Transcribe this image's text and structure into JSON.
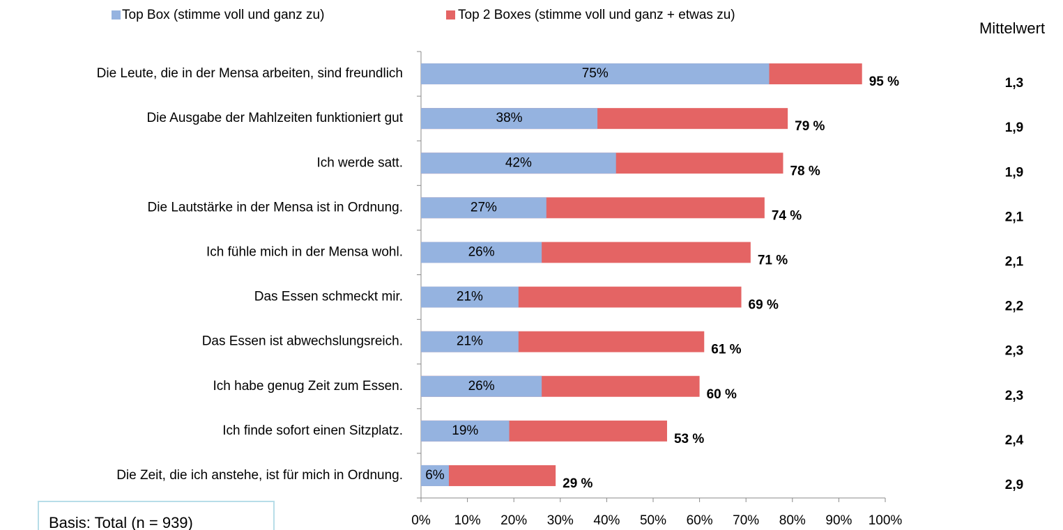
{
  "chart_data": {
    "type": "bar",
    "orientation": "horizontal",
    "overlap": true,
    "categories": [
      "Die Leute, die in der Mensa arbeiten, sind freundlich",
      "Die Ausgabe der Mahlzeiten funktioniert gut",
      "Ich werde satt.",
      "Die Lautstärke in der Mensa ist in Ordnung.",
      "Ich fühle mich in der Mensa wohl.",
      "Das Essen schmeckt mir.",
      "Das Essen ist abwechslungsreich.",
      "Ich habe genug Zeit zum Essen.",
      "Ich finde sofort einen Sitzplatz.",
      "Die Zeit, die ich anstehe, ist für mich in Ordnung."
    ],
    "series": [
      {
        "name": "Top 2 Boxes (stimme voll und ganz + etwas zu)",
        "color": "#e46464",
        "values": [
          95,
          79,
          78,
          74,
          71,
          69,
          61,
          60,
          53,
          29
        ],
        "value_labels": [
          "95 %",
          "79 %",
          "78 %",
          "74 %",
          "71 %",
          "69 %",
          "61 %",
          "60 %",
          "53 %",
          "29 %"
        ]
      },
      {
        "name": "Top Box (stimme voll und ganz zu)",
        "color": "#95b3e0",
        "values": [
          75,
          38,
          42,
          27,
          26,
          21,
          21,
          26,
          19,
          6
        ],
        "value_labels": [
          "75%",
          "38%",
          "42%",
          "27%",
          "26%",
          "21%",
          "21%",
          "26%",
          "19%",
          "6%"
        ]
      }
    ],
    "means": {
      "title": "Mittelwert",
      "values": [
        1.3,
        1.9,
        1.9,
        2.1,
        2.1,
        2.2,
        2.3,
        2.3,
        2.4,
        2.9
      ],
      "value_labels": [
        "1,3",
        "1,9",
        "1,9",
        "2,1",
        "2,1",
        "2,2",
        "2,3",
        "2,3",
        "2,4",
        "2,9"
      ]
    },
    "xlim": [
      0,
      100
    ],
    "xticks": [
      {
        "value": 0,
        "label": "0%"
      },
      {
        "value": 10,
        "label": "10%"
      },
      {
        "value": 20,
        "label": "20%"
      },
      {
        "value": 30,
        "label": "30%"
      },
      {
        "value": 40,
        "label": "40%"
      },
      {
        "value": 50,
        "label": "50%"
      },
      {
        "value": 60,
        "label": "60%"
      },
      {
        "value": 70,
        "label": "70%"
      },
      {
        "value": 80,
        "label": "80%"
      },
      {
        "value": 90,
        "label": "90%"
      },
      {
        "value": 100,
        "label": "100%"
      }
    ],
    "footnote": "Basis: Total (n = 939)"
  }
}
